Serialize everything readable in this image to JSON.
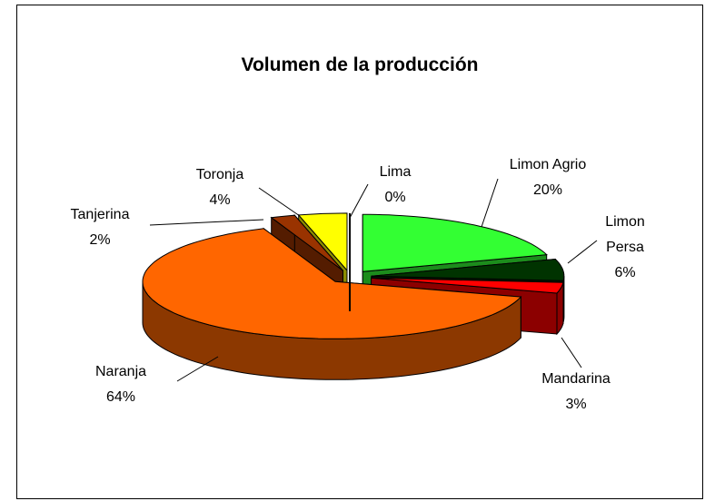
{
  "chart_data": {
    "type": "pie3d",
    "title": "Volumen de la producción",
    "categories": [
      "Limon Agrio",
      "Limon Persa",
      "Mandarina",
      "Naranja",
      "Tanjerina",
      "Toronja",
      "Lima"
    ],
    "values": [
      20,
      6,
      3,
      64,
      2,
      4,
      0
    ],
    "value_labels": [
      "20%",
      "6%",
      "3%",
      "64%",
      "2%",
      "4%",
      "0%"
    ],
    "colors": [
      "#33ff33",
      "#003300",
      "#ff0000",
      "#ff6600",
      "#993300",
      "#ffff00",
      "#000000"
    ]
  }
}
